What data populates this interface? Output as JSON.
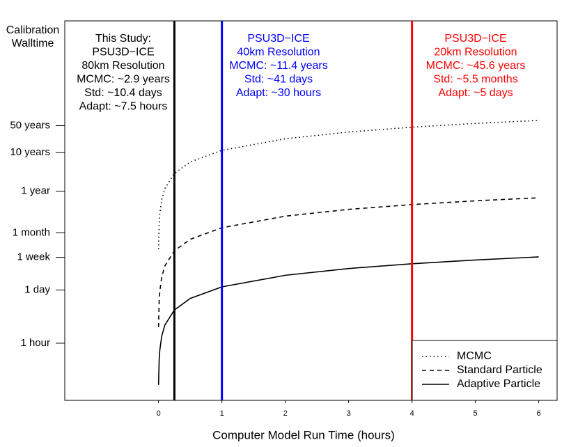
{
  "chart_data": {
    "type": "line",
    "ylabel_lines": [
      "Calibration",
      "Walltime"
    ],
    "xlabel": "Computer Model Run Time (hours)",
    "log_y": true,
    "xlim": [
      -1.48,
      6.29
    ],
    "ylim": [
      0.033,
      228000000
    ],
    "xticks": [
      0,
      1,
      2,
      3,
      4,
      5,
      6
    ],
    "yticks": [
      {
        "value": 1,
        "label": "1 hour"
      },
      {
        "value": 24,
        "label": "1 day"
      },
      {
        "value": 168,
        "label": "1 week"
      },
      {
        "value": 730,
        "label": "1 month"
      },
      {
        "value": 8760,
        "label": "1 year"
      },
      {
        "value": 87600,
        "label": "10 years"
      },
      {
        "value": 438000,
        "label": "50 years"
      }
    ],
    "x": [
      0,
      0.01,
      0.02,
      0.05,
      0.1,
      0.25,
      0.5,
      1,
      2,
      3,
      4,
      5,
      6
    ],
    "series": [
      {
        "name": "MCMC",
        "color": "#000000",
        "linestyle": "dotted",
        "values": [
          274,
          1273,
          2271,
          5267,
          10260,
          25240,
          50206,
          100138,
          200002,
          299866,
          399730,
          499594,
          599458
        ]
      },
      {
        "name": "Standard Particle",
        "color": "#000000",
        "linestyle": "dashed",
        "values": [
          2.6,
          12.4,
          22.3,
          51.8,
          101,
          249,
          495,
          987,
          1971,
          2955,
          3939,
          4923,
          5907
        ]
      },
      {
        "name": "Adaptive Particle",
        "color": "#000000",
        "linestyle": "solid",
        "values": [
          0.083,
          0.371,
          0.659,
          1.52,
          2.96,
          7.28,
          14.5,
          28.9,
          57.7,
          86.5,
          115,
          144,
          173
        ]
      }
    ],
    "vlines": [
      {
        "x": 0.25,
        "color": "#000000",
        "text": [
          "This Study:",
          "PSU3D−ICE",
          "80km Resolution",
          "MCMC: ~2.9 years",
          "Std: ~10.4 days",
          "Adapt: ~7.5 hours"
        ]
      },
      {
        "x": 1,
        "color": "#0000ff",
        "text": [
          "PSU3D−ICE",
          "40km Resolution",
          "MCMC: ~11.4 years",
          "Std: ~41 days",
          "Adapt: ~30 hours"
        ]
      },
      {
        "x": 4,
        "color": "#ff0000",
        "text": [
          "PSU3D−ICE",
          "20km Resolution",
          "MCMC: ~45.6 years",
          "Std: ~5.5 months",
          "Adapt: ~5 days"
        ]
      }
    ],
    "legend": "bottom-right"
  }
}
